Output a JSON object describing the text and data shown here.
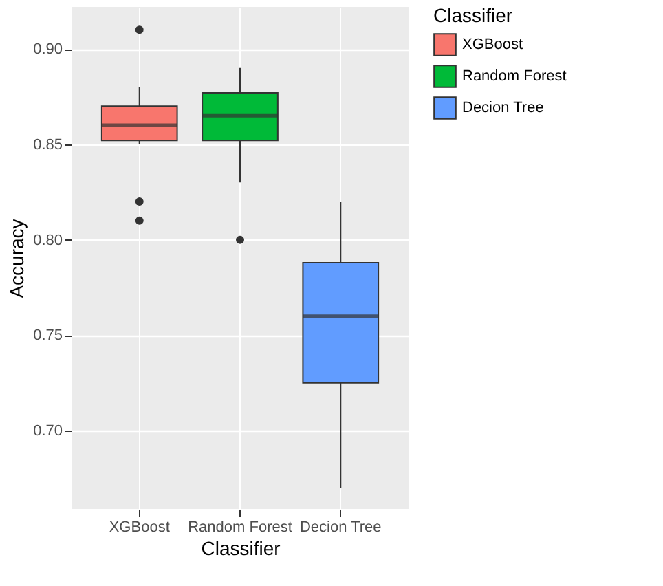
{
  "chart_data": {
    "type": "box",
    "xlabel": "Classifier",
    "ylabel": "Accuracy",
    "legend_title": "Classifier",
    "legend": "right",
    "categories": [
      "XGBoost",
      "Random Forest",
      "Decion Tree"
    ],
    "series": [
      {
        "name": "XGBoost",
        "color": "#f8766d",
        "x": [
          "XGBoost"
        ],
        "boxes": [
          {
            "low": 0.85,
            "q1": 0.852,
            "median": 0.86,
            "q3": 0.87,
            "high": 0.88,
            "outliers": [
              0.91,
              0.82,
              0.81
            ]
          }
        ]
      },
      {
        "name": "Random Forest",
        "color": "#00ba38",
        "x": [
          "Random Forest"
        ],
        "boxes": [
          {
            "low": 0.83,
            "q1": 0.852,
            "median": 0.865,
            "q3": 0.877,
            "high": 0.89,
            "outliers": [
              0.8
            ]
          }
        ]
      },
      {
        "name": "Decion Tree",
        "color": "#619cff",
        "x": [
          "Decion Tree"
        ],
        "boxes": [
          {
            "low": 0.67,
            "q1": 0.725,
            "median": 0.76,
            "q3": 0.788,
            "high": 0.82
          }
        ]
      }
    ],
    "ylim": [
      0.659,
      0.922
    ],
    "yticks": [
      {
        "value": 0.7,
        "label": "0.70"
      },
      {
        "value": 0.75,
        "label": "0.75"
      },
      {
        "value": 0.8,
        "label": "0.80"
      },
      {
        "value": 0.85,
        "label": "0.85"
      },
      {
        "value": 0.9,
        "label": "0.90"
      }
    ],
    "grid": true
  }
}
